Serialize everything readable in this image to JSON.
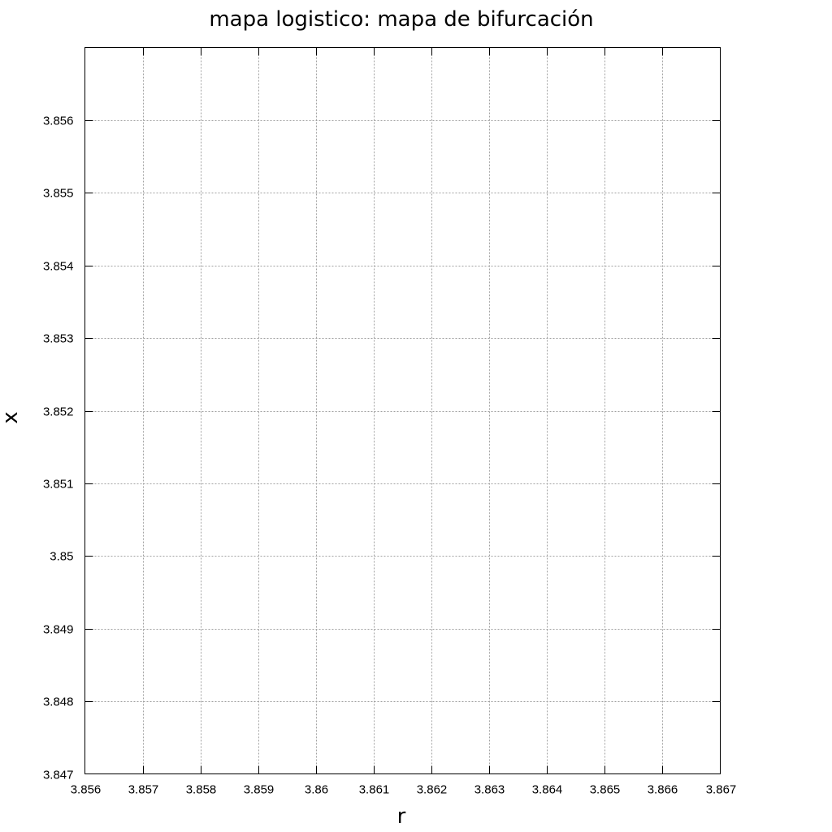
{
  "chart_data": {
    "type": "scatter",
    "title": "mapa logistico: mapa de bifurcación",
    "xlabel": "r",
    "ylabel": "x",
    "xlim": [
      3.856,
      3.867
    ],
    "ylim": [
      3.847,
      3.857
    ],
    "x_ticks": [
      3.856,
      3.857,
      3.858,
      3.859,
      3.86,
      3.861,
      3.862,
      3.863,
      3.864,
      3.865,
      3.866,
      3.867
    ],
    "x_tick_labels": [
      "3.856",
      "3.857",
      "3.858",
      "3.859",
      "3.86",
      "3.861",
      "3.862",
      "3.863",
      "3.864",
      "3.865",
      "3.866",
      "3.867"
    ],
    "y_ticks": [
      3.847,
      3.848,
      3.849,
      3.85,
      3.851,
      3.852,
      3.853,
      3.854,
      3.855,
      3.856
    ],
    "y_tick_labels": [
      "3.847",
      "3.848",
      "3.849",
      "3.85",
      "3.851",
      "3.852",
      "3.853",
      "3.854",
      "3.855",
      "3.856"
    ],
    "grid": true,
    "series": [],
    "colors": {
      "grid": "#a0a0a0",
      "axis": "#000000",
      "background": "#ffffff"
    }
  }
}
